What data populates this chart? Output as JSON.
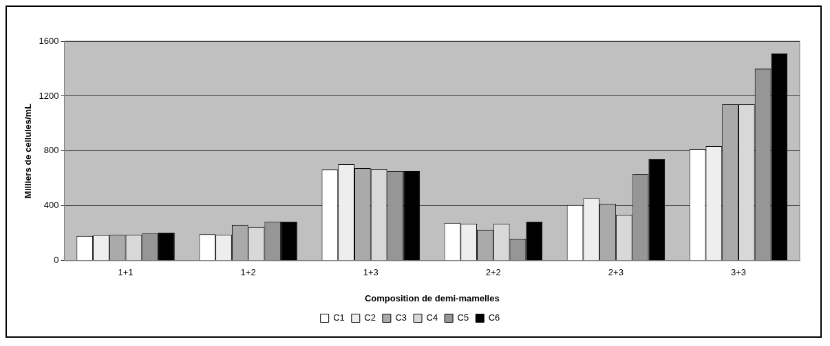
{
  "chart_data": {
    "type": "bar",
    "xlabel": "Composition de demi-mamelles",
    "ylabel": "Milliers de cellules/mL",
    "categories": [
      "1+1",
      "1+2",
      "1+3",
      "2+2",
      "2+3",
      "3+3"
    ],
    "series": [
      {
        "name": "C1",
        "color": "#ffffff",
        "values": [
          180,
          193,
          665,
          275,
          405,
          815
        ]
      },
      {
        "name": "C2",
        "color": "#eeeeee",
        "values": [
          185,
          190,
          705,
          270,
          455,
          835
        ]
      },
      {
        "name": "C3",
        "color": "#aaaaaa",
        "values": [
          190,
          260,
          675,
          225,
          415,
          1140
        ]
      },
      {
        "name": "C4",
        "color": "#d8d8d8",
        "values": [
          190,
          245,
          670,
          270,
          335,
          1140
        ]
      },
      {
        "name": "C5",
        "color": "#969696",
        "values": [
          200,
          285,
          655,
          160,
          630,
          1400
        ]
      },
      {
        "name": "C6",
        "color": "#000000",
        "values": [
          205,
          285,
          655,
          285,
          740,
          1510
        ]
      }
    ],
    "ylim": [
      0,
      1600
    ],
    "yticks": [
      0,
      400,
      800,
      1200,
      1600
    ],
    "grid": "y",
    "legend": "bottom"
  }
}
